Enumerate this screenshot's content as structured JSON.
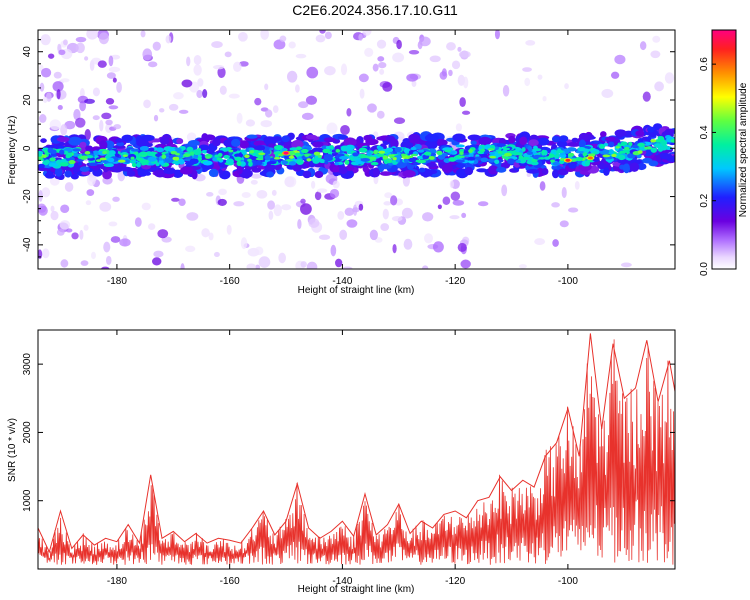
{
  "title": "C2E6.2024.356.17.10.G11",
  "chart_data": [
    {
      "type": "heatmap",
      "xlabel": "Height of straight line (km)",
      "ylabel": "Frequency (Hz)",
      "xlim": [
        -194,
        -81
      ],
      "ylim": [
        -50,
        49
      ],
      "xticks": [
        -180,
        -160,
        -140,
        -120,
        -100
      ],
      "yticks": [
        -40,
        -20,
        0,
        20,
        40
      ],
      "colorbar": {
        "label": "Normalized spectral amplitude",
        "range": [
          0.0,
          0.7
        ],
        "ticks": [
          0.0,
          0.2,
          0.4,
          0.6
        ]
      },
      "ridge": {
        "description_points": [
          {
            "x": -194,
            "y": -4
          },
          {
            "x": -160,
            "y": -3
          },
          {
            "x": -130,
            "y": -3
          },
          {
            "x": -110,
            "y": -2
          },
          {
            "x": -100,
            "y": -4
          },
          {
            "x": -90,
            "y": -1
          },
          {
            "x": -81,
            "y": 3
          }
        ]
      },
      "hotspots": [
        {
          "x": -150,
          "y": -2,
          "value": 0.7
        },
        {
          "x": -100,
          "y": -5,
          "value": 0.65
        },
        {
          "x": -96,
          "y": -4,
          "value": 0.6
        }
      ]
    },
    {
      "type": "line",
      "xlabel": "Height of straight line (km)",
      "ylabel": "SNR (10 * v/v)",
      "xlim": [
        -194,
        -81
      ],
      "ylim": [
        0,
        3500
      ],
      "xticks": [
        -180,
        -160,
        -140,
        -120,
        -100
      ],
      "yticks": [
        1000,
        2000,
        3000
      ],
      "color": "#e8322c",
      "series": [
        {
          "x": [
            -194,
            -192,
            -190,
            -188,
            -186,
            -184,
            -182,
            -180,
            -178,
            -176,
            -174,
            -172,
            -170,
            -168,
            -166,
            -164,
            -162,
            -160,
            -158,
            -156,
            -154,
            -152,
            -150,
            -148,
            -146,
            -144,
            -142,
            -140,
            -138,
            -136,
            -134,
            -132,
            -130,
            -128,
            -126,
            -124,
            -122,
            -120,
            -118,
            -116,
            -114,
            -112,
            -110,
            -108,
            -106,
            -104,
            -102,
            -100,
            -98,
            -96,
            -94,
            -92,
            -90,
            -88,
            -86,
            -84,
            -82,
            -81
          ],
          "y": [
            600,
            250,
            850,
            300,
            500,
            350,
            450,
            400,
            650,
            380,
            1380,
            450,
            550,
            400,
            520,
            380,
            450,
            420,
            380,
            600,
            850,
            500,
            700,
            1250,
            600,
            450,
            550,
            700,
            480,
            1100,
            500,
            650,
            950,
            520,
            700,
            600,
            800,
            850,
            750,
            1000,
            1050,
            1350,
            1150,
            1300,
            1200,
            1650,
            1850,
            2350,
            1650,
            3450,
            2050,
            3300,
            2500,
            2650,
            3350,
            2450,
            3050,
            2600
          ]
        }
      ]
    }
  ]
}
